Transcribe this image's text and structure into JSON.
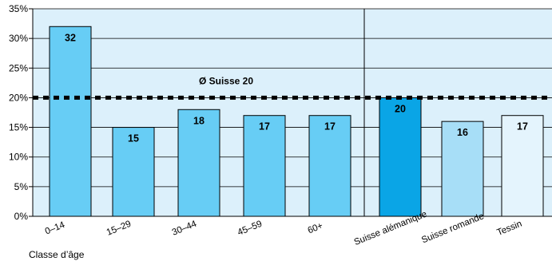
{
  "chart_data": {
    "type": "bar",
    "categories": [
      "0–14",
      "15–29",
      "30–44",
      "45–59",
      "60+",
      "Suisse alémanique",
      "Suisse romande",
      "Tessin"
    ],
    "values": [
      32,
      15,
      18,
      17,
      17,
      20,
      16,
      17
    ],
    "data_labels": [
      "32",
      "15",
      "18",
      "17",
      "17",
      "20",
      "16",
      "17"
    ],
    "groups": [
      {
        "categories": [
          "0–14",
          "15–29",
          "30–44",
          "45–59",
          "60+"
        ],
        "label": "Classe d’âge"
      },
      {
        "categories": [
          "Suisse alémanique",
          "Suisse romande",
          "Tessin"
        ],
        "label": ""
      }
    ],
    "reference_line": {
      "value": 20,
      "label": "Ø Suisse 20",
      "style": "dashed"
    },
    "ylim": [
      0,
      35
    ],
    "yticks": [
      "0%",
      "5%",
      "10%",
      "15%",
      "20%",
      "25%",
      "30%",
      "35%"
    ],
    "title": "",
    "xlabel": "Classe d’âge",
    "ylabel": "",
    "grid": true,
    "colors": {
      "plot_background": "#dcf0fb",
      "gridline": "#000000",
      "age_bars": "#67cdf5",
      "suisse_alemanique": "#0aa5e6",
      "suisse_romande": "#a7def7",
      "tessin": "#e4f4fd",
      "reference_line": "#000000"
    }
  }
}
